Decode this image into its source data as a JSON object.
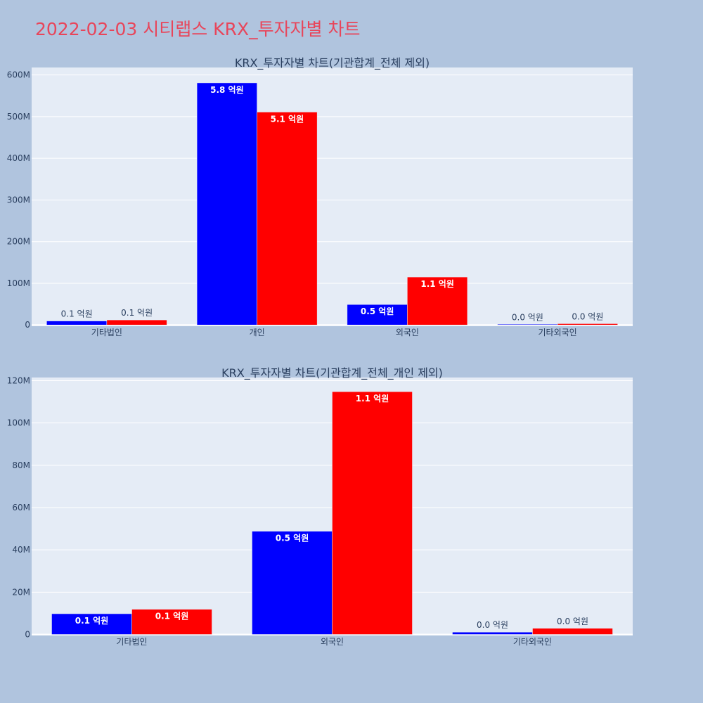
{
  "page": {
    "title": "2022-02-03 시티랩스 KRX_투자자별 차트",
    "background": "#b0c4de",
    "plot_background": "#e5ecf6",
    "title_color": "#e8455a"
  },
  "chart_data": [
    {
      "type": "bar",
      "title": "KRX_투자자별 차트(기관합계_전체 제외)",
      "categories": [
        "기타법인",
        "개인",
        "외국인",
        "기타외국인"
      ],
      "series": [
        {
          "color": "#0000ff",
          "values": [
            9500000,
            581000000,
            49000000,
            1000000
          ],
          "labels": [
            "0.1 억원",
            "5.8 억원",
            "0.5 억원",
            "0.0 억원"
          ]
        },
        {
          "color": "#ff0000",
          "values": [
            12000000,
            511000000,
            115000000,
            3000000
          ],
          "labels": [
            "0.1 억원",
            "5.1 억원",
            "1.1 억원",
            "0.0 억원"
          ]
        }
      ],
      "ylim": [
        -3000000,
        618000000
      ],
      "yticks": [
        0,
        100000000,
        200000000,
        300000000,
        400000000,
        500000000,
        600000000
      ],
      "ytick_labels": [
        "0",
        "100M",
        "200M",
        "300M",
        "400M",
        "500M",
        "600M"
      ],
      "grid": true,
      "xlabel": "",
      "ylabel": ""
    },
    {
      "type": "bar",
      "title": "KRX_투자자별 차트(기관합계_전체_개인 제외)",
      "categories": [
        "기타법인",
        "외국인",
        "기타외국인"
      ],
      "series": [
        {
          "color": "#0000ff",
          "values": [
            9800000,
            48800000,
            1100000
          ],
          "labels": [
            "0.1 억원",
            "0.5 억원",
            "0.0 억원"
          ]
        },
        {
          "color": "#ff0000",
          "values": [
            11900000,
            114800000,
            2900000
          ],
          "labels": [
            "0.1 억원",
            "1.1 억원",
            "0.0 억원"
          ]
        }
      ],
      "ylim": [
        -500000,
        121500000
      ],
      "yticks": [
        0,
        20000000,
        40000000,
        60000000,
        80000000,
        100000000,
        120000000
      ],
      "ytick_labels": [
        "0",
        "20M",
        "40M",
        "60M",
        "80M",
        "100M",
        "120M"
      ],
      "grid": true,
      "xlabel": "",
      "ylabel": ""
    }
  ]
}
